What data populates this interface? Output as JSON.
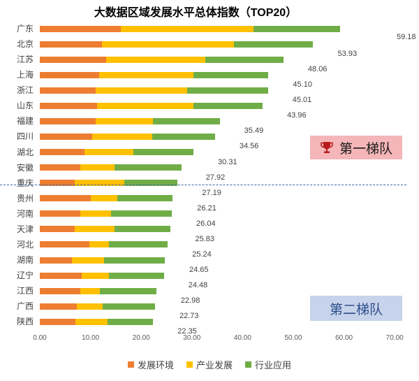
{
  "chart_data": {
    "type": "bar",
    "orientation": "horizontal",
    "stacked": true,
    "title": "大数据区域发展水平总体指数（TOP20）",
    "categories": [
      "广东",
      "北京",
      "江苏",
      "上海",
      "浙江",
      "山东",
      "福建",
      "四川",
      "湖北",
      "安徽",
      "重庆",
      "贵州",
      "河南",
      "天津",
      "河北",
      "湖南",
      "辽宁",
      "江西",
      "广西",
      "陕西"
    ],
    "series": [
      {
        "name": "发展环境",
        "color": "#ed7d31",
        "values": [
          16.0,
          12.3,
          13.1,
          11.7,
          11.0,
          11.3,
          11.0,
          10.3,
          8.8,
          8.0,
          6.9,
          10.0,
          8.0,
          6.9,
          9.8,
          6.4,
          8.2,
          8.0,
          7.3,
          7.0
        ]
      },
      {
        "name": "产业发展",
        "color": "#ffc000",
        "values": [
          26.1,
          26.0,
          19.6,
          18.6,
          18.0,
          19.0,
          11.3,
          11.9,
          9.7,
          6.8,
          9.8,
          5.3,
          6.0,
          7.9,
          3.8,
          6.3,
          5.4,
          3.9,
          5.1,
          6.4
        ]
      },
      {
        "name": "行业应用",
        "color": "#70ad47",
        "values": [
          17.1,
          15.6,
          15.4,
          14.8,
          16.0,
          13.7,
          13.2,
          12.4,
          11.8,
          13.1,
          10.5,
          10.9,
          12.0,
          11.0,
          11.6,
          11.9,
          10.9,
          11.1,
          10.3,
          8.9
        ]
      }
    ],
    "totals_labels": [
      "59.18",
      "53.93",
      "48.06",
      "45.10",
      "45.01",
      "43.96",
      "35.49",
      "34.56",
      "30.31",
      "27.92",
      "27.19",
      "26.21",
      "26.04",
      "25.83",
      "25.24",
      "24.65",
      "24.48",
      "22.98",
      "22.73",
      "22.35"
    ],
    "totals": [
      59.18,
      53.93,
      48.06,
      45.1,
      45.01,
      43.96,
      35.49,
      34.56,
      30.31,
      27.92,
      27.19,
      26.21,
      26.04,
      25.83,
      25.24,
      24.65,
      24.48,
      22.98,
      22.73,
      22.35
    ],
    "xlim": [
      0,
      70
    ],
    "xticks": [
      0,
      10,
      20,
      30,
      40,
      50,
      60,
      70
    ],
    "xtick_labels": [
      "0.00",
      "10.00",
      "20.00",
      "30.00",
      "40.00",
      "50.00",
      "60.00",
      "70.00"
    ],
    "legend_position": "bottom"
  },
  "annotations": {
    "tier1_label": "第一梯队",
    "tier2_label": "第二梯队",
    "tier1_color": "#f4b6b9",
    "tier2_color": "#c6d3ea",
    "trophy_icon": "trophy-icon"
  }
}
